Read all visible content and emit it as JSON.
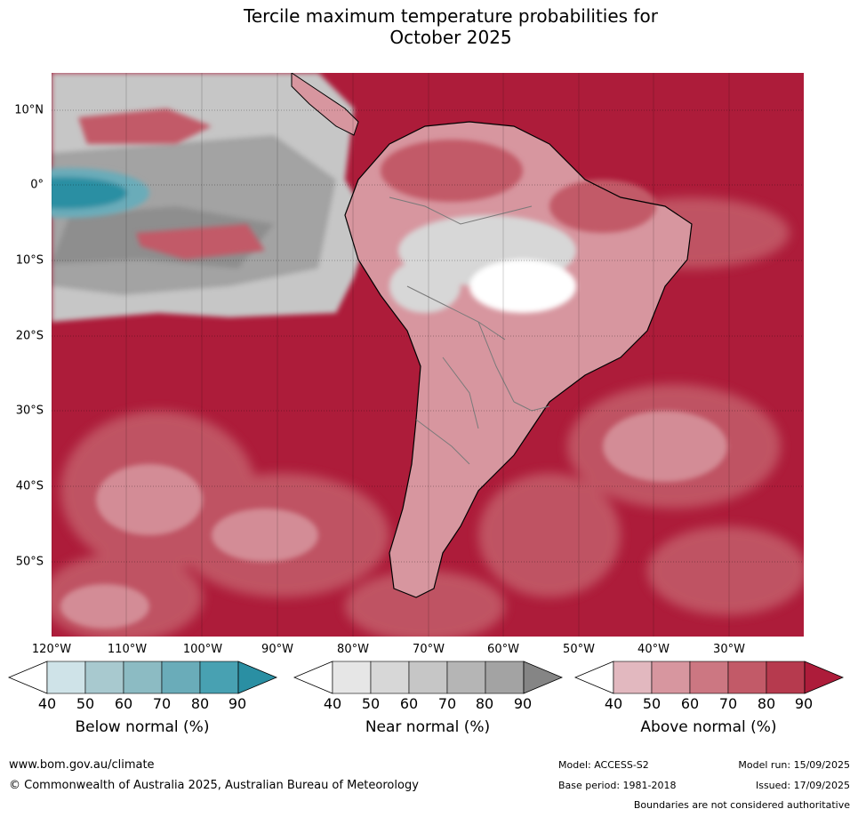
{
  "title_line1": "Tercile maximum temperature probabilities for",
  "title_line2": "October 2025",
  "lat_labels": [
    "10°N",
    "0°",
    "10°S",
    "20°S",
    "30°S",
    "40°S",
    "50°S"
  ],
  "lon_labels": [
    "120°W",
    "110°W",
    "100°W",
    "90°W",
    "80°W",
    "70°W",
    "60°W",
    "50°W",
    "40°W",
    "30°W"
  ],
  "colorbars": [
    {
      "title": "Below normal (%)",
      "ticks": [
        "40",
        "50",
        "60",
        "70",
        "80",
        "90"
      ],
      "colors": [
        "#cfe3e8",
        "#a8c9cf",
        "#8cbbc3",
        "#6aacb9",
        "#48a1b2",
        "#2a8fa3"
      ]
    },
    {
      "title": "Near normal (%)",
      "ticks": [
        "40",
        "50",
        "60",
        "70",
        "80",
        "90"
      ],
      "colors": [
        "#e6e6e6",
        "#d7d7d7",
        "#c6c6c6",
        "#b5b5b5",
        "#a3a3a3",
        "#858585"
      ]
    },
    {
      "title": "Above normal (%)",
      "ticks": [
        "40",
        "50",
        "60",
        "70",
        "80",
        "90"
      ],
      "colors": [
        "#e2b8bf",
        "#d7969f",
        "#cc7782",
        "#c25a68",
        "#b63a4e",
        "#ad1c3a"
      ]
    }
  ],
  "colors": {
    "ocean_above": "#ad1c3a",
    "land_above_light": "#d7969f",
    "near_normal_grey": "#a3a3a3",
    "below_normal_teal": "#2a8fa3"
  },
  "footer": {
    "website": "www.bom.gov.au/climate",
    "copyright": "© Commonwealth of Australia 2025, Australian Bureau of Meteorology",
    "model": "Model: ACCESS-S2",
    "base_period": "Base period: 1981-2018",
    "model_run": "Model run: 15/09/2025",
    "issued": "Issued: 17/09/2025",
    "boundaries": "Boundaries are not considered authoritative"
  }
}
